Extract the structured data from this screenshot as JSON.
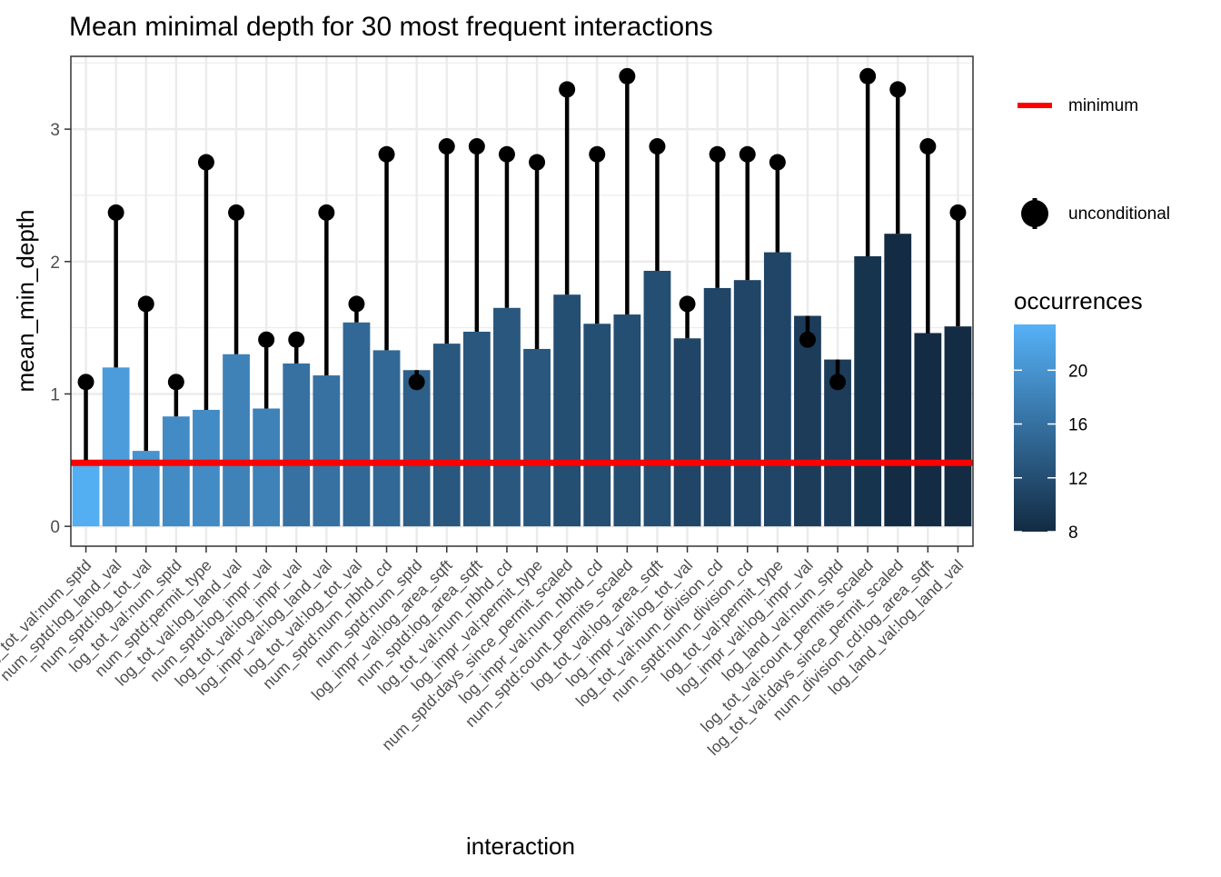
{
  "chart_data": {
    "type": "bar",
    "title": "Mean minimal depth for 30 most frequent interactions",
    "xlabel": "interaction",
    "ylabel": "mean_min_depth",
    "ylim": [
      -0.15,
      3.55
    ],
    "yticks": [
      0,
      1,
      2,
      3
    ],
    "grid": true,
    "minimum": 0.48,
    "categories": [
      "log_tot_val:num_sptd",
      "num_sptd:log_land_val",
      "num_sptd:log_tot_val",
      "log_tot_val:num_sptd",
      "num_sptd:permit_type",
      "log_tot_val:log_land_val",
      "num_sptd:log_impr_val",
      "log_tot_val:log_impr_val",
      "log_impr_val:log_land_val",
      "log_tot_val:log_tot_val",
      "num_sptd:num_nbhd_cd",
      "num_sptd:num_sptd",
      "log_impr_val:log_area_sqft",
      "num_sptd:log_area_sqft",
      "log_tot_val:num_nbhd_cd",
      "log_impr_val:permit_type",
      "num_sptd:days_since_permit_scaled",
      "log_impr_val:num_nbhd_cd",
      "num_sptd:count_permits_scaled",
      "log_tot_val:log_area_sqft",
      "log_impr_val:log_tot_val",
      "log_tot_val:num_division_cd",
      "num_sptd:num_division_cd",
      "log_tot_val:permit_type",
      "log_impr_val:log_impr_val",
      "log_land_val:num_sptd",
      "log_tot_val:count_permits_scaled",
      "log_tot_val:days_since_permit_scaled",
      "num_division_cd:log_area_sqft",
      "log_land_val:log_land_val"
    ],
    "series": [
      {
        "key": "mean_min_depth",
        "values": [
          0.5,
          1.2,
          0.57,
          0.83,
          0.88,
          1.3,
          0.89,
          1.23,
          1.14,
          1.54,
          1.33,
          1.18,
          1.38,
          1.47,
          1.65,
          1.34,
          1.75,
          1.53,
          1.6,
          1.93,
          1.42,
          1.8,
          1.86,
          2.07,
          1.59,
          1.26,
          2.04,
          2.21,
          1.46,
          1.51
        ]
      },
      {
        "name": "unconditional",
        "values": [
          1.09,
          2.37,
          1.68,
          1.09,
          2.75,
          2.37,
          1.41,
          1.41,
          2.37,
          1.68,
          2.81,
          1.09,
          2.87,
          2.87,
          2.81,
          2.75,
          3.3,
          2.81,
          3.4,
          2.87,
          1.68,
          2.81,
          2.81,
          2.75,
          1.41,
          1.09,
          3.4,
          3.3,
          2.87,
          2.37
        ]
      },
      {
        "key": "occurrences",
        "values": [
          23,
          21,
          20,
          19,
          19,
          18,
          18,
          16,
          16,
          15,
          15,
          14,
          13,
          13,
          13,
          13,
          12,
          12,
          12,
          12,
          11,
          11,
          11,
          11,
          10,
          10,
          9,
          8,
          8,
          8
        ]
      }
    ],
    "legend": {
      "placement": "right",
      "minimum_label": "minimum",
      "unconditional_label": "unconditional",
      "colorbar_title": "occurrences",
      "colorbar_ticks": [
        "8",
        "12",
        "16",
        "20"
      ],
      "colorbar_range": [
        8,
        23.4
      ],
      "color_low": "#132b43",
      "color_high": "#56b1f7"
    },
    "colors": {
      "minimum_line": "#ff0000",
      "segment": "#000000",
      "panel_border": "#333333",
      "grid": "#ebebeb"
    }
  }
}
